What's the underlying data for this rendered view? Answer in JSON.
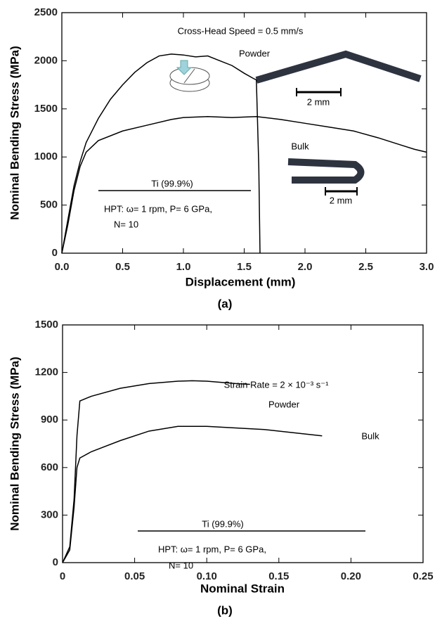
{
  "chart_data": [
    {
      "type": "line",
      "xlabel": "Displacement (mm)",
      "ylabel": "Nominal Bending Stress (MPa)",
      "panel_label": "(a)",
      "xlim": [
        0,
        3
      ],
      "ylim": [
        0,
        2500
      ],
      "xticks": [
        {
          "value": 0,
          "label": "0.0"
        },
        0.5,
        {
          "value": 1,
          "label": "1.0"
        },
        1.5,
        {
          "value": 2,
          "label": "2.0"
        },
        2.5,
        {
          "value": 3,
          "label": "3.0"
        }
      ],
      "yticks": [
        0,
        500,
        1000,
        1500,
        2000,
        2500
      ],
      "series": [
        {
          "name": "Powder",
          "color": "#000000",
          "x": [
            0,
            0.05,
            0.1,
            0.15,
            0.2,
            0.3,
            0.4,
            0.5,
            0.6,
            0.7,
            0.8,
            0.9,
            1.0,
            1.1,
            1.2,
            1.3,
            1.4,
            1.5,
            1.57,
            1.6,
            1.62,
            1.63
          ],
          "values": [
            0,
            350,
            700,
            950,
            1150,
            1400,
            1600,
            1750,
            1880,
            1980,
            2050,
            2070,
            2060,
            2040,
            2050,
            2000,
            1950,
            1870,
            1820,
            1800,
            900,
            0
          ]
        },
        {
          "name": "Bulk",
          "color": "#000000",
          "x": [
            0,
            0.05,
            0.1,
            0.15,
            0.2,
            0.3,
            0.5,
            0.7,
            0.9,
            1.0,
            1.2,
            1.4,
            1.6,
            1.8,
            2.0,
            2.2,
            2.4,
            2.6,
            2.8,
            2.9,
            3.0
          ],
          "values": [
            0,
            300,
            650,
            900,
            1050,
            1170,
            1270,
            1330,
            1390,
            1410,
            1420,
            1410,
            1420,
            1390,
            1350,
            1310,
            1270,
            1200,
            1120,
            1080,
            1050
          ]
        }
      ],
      "annotations": [
        "Cross-Head Speed = 0.5 mm/s",
        "Ti (99.9%)",
        "HPT: ω= 1 rpm, P= 6 GPa,",
        "N= 10",
        "2 mm",
        "2 mm"
      ]
    },
    {
      "type": "line",
      "xlabel": "Nominal Strain",
      "ylabel": "Nominal Bending Stress (MPa)",
      "panel_label": "(b)",
      "xlim": [
        0,
        0.25
      ],
      "ylim": [
        0,
        1500
      ],
      "xticks": [
        0,
        0.05,
        {
          "value": 0.1,
          "label": "0.10"
        },
        0.15,
        {
          "value": 0.2,
          "label": "0.20"
        },
        0.25
      ],
      "yticks": [
        0,
        300,
        600,
        900,
        1200,
        1500
      ],
      "series": [
        {
          "name": "Powder",
          "color": "#000000",
          "x": [
            0,
            0.005,
            0.008,
            0.01,
            0.012,
            0.02,
            0.04,
            0.06,
            0.08,
            0.09,
            0.1,
            0.12,
            0.13
          ],
          "values": [
            0,
            100,
            400,
            800,
            1020,
            1050,
            1100,
            1130,
            1145,
            1148,
            1145,
            1130,
            1125
          ]
        },
        {
          "name": "Bulk",
          "color": "#000000",
          "x": [
            0,
            0.005,
            0.008,
            0.01,
            0.012,
            0.02,
            0.04,
            0.06,
            0.08,
            0.1,
            0.12,
            0.14,
            0.16,
            0.18
          ],
          "values": [
            0,
            80,
            350,
            600,
            660,
            700,
            770,
            830,
            860,
            860,
            850,
            840,
            820,
            800
          ]
        }
      ],
      "annotations": [
        "Strain Rate = 2 × 10⁻³ s⁻¹",
        "Ti (99.9%)",
        "HPT: ω= 1 rpm, P= 6 GPa,",
        "N= 10"
      ]
    }
  ]
}
